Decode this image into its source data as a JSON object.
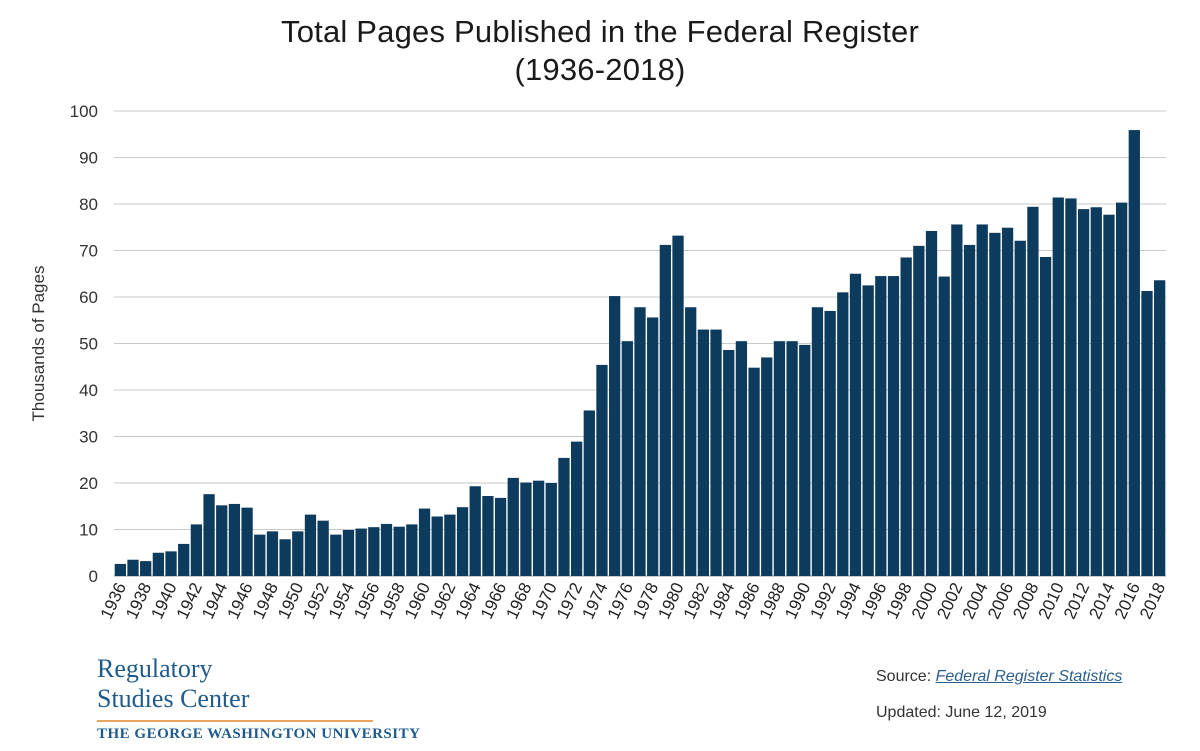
{
  "chart_data": {
    "type": "bar",
    "title_line1": "Total Pages Published in the Federal Register",
    "title_line2": "(1936-2018)",
    "xlabel": "",
    "ylabel": "Thousands of Pages",
    "ylim": [
      0,
      100
    ],
    "yticks": [
      0,
      10,
      20,
      30,
      40,
      50,
      60,
      70,
      80,
      90,
      100
    ],
    "grid": true,
    "bar_color": "#0d3b5e",
    "categories": [
      1936,
      1937,
      1938,
      1939,
      1940,
      1941,
      1942,
      1943,
      1944,
      1945,
      1946,
      1947,
      1948,
      1949,
      1950,
      1951,
      1952,
      1953,
      1954,
      1955,
      1956,
      1957,
      1958,
      1959,
      1960,
      1961,
      1962,
      1963,
      1964,
      1965,
      1966,
      1967,
      1968,
      1969,
      1970,
      1971,
      1972,
      1973,
      1974,
      1975,
      1976,
      1977,
      1978,
      1979,
      1980,
      1981,
      1982,
      1983,
      1984,
      1985,
      1986,
      1987,
      1988,
      1989,
      1990,
      1991,
      1992,
      1993,
      1994,
      1995,
      1996,
      1997,
      1998,
      1999,
      2000,
      2001,
      2002,
      2003,
      2004,
      2005,
      2006,
      2007,
      2008,
      2009,
      2010,
      2011,
      2012,
      2013,
      2014,
      2015,
      2016,
      2017,
      2018
    ],
    "tick_labels": [
      "1936",
      "1938",
      "1940",
      "1942",
      "1944",
      "1946",
      "1948",
      "1950",
      "1952",
      "1954",
      "1956",
      "1958",
      "1960",
      "1962",
      "1964",
      "1966",
      "1968",
      "1970",
      "1972",
      "1974",
      "1976",
      "1978",
      "1980",
      "1982",
      "1984",
      "1986",
      "1988",
      "1990",
      "1992",
      "1994",
      "1996",
      "1998",
      "2000",
      "2002",
      "2004",
      "2006",
      "2008",
      "2010",
      "2012",
      "2014",
      "2016",
      "2018"
    ],
    "values": [
      2.6,
      3.5,
      3.2,
      5.0,
      5.3,
      6.9,
      11.1,
      17.6,
      15.2,
      15.5,
      14.7,
      8.9,
      9.6,
      7.9,
      9.6,
      13.2,
      11.9,
      8.9,
      9.9,
      10.2,
      10.5,
      11.2,
      10.6,
      11.1,
      14.5,
      12.8,
      13.2,
      14.8,
      19.3,
      17.2,
      16.8,
      21.1,
      20.1,
      20.5,
      20.0,
      25.4,
      28.9,
      35.6,
      45.4,
      60.2,
      50.5,
      57.8,
      55.6,
      71.2,
      73.2,
      57.8,
      53.0,
      53.0,
      48.6,
      50.5,
      44.8,
      47.0,
      50.5,
      50.5,
      49.7,
      57.8,
      57.0,
      61.0,
      65.0,
      62.5,
      64.5,
      64.5,
      68.5,
      71.0,
      74.2,
      64.4,
      75.6,
      71.2,
      75.6,
      73.8,
      74.9,
      72.1,
      79.4,
      68.6,
      81.4,
      81.2,
      78.9,
      79.3,
      77.7,
      80.3,
      95.9,
      61.3,
      63.6
    ]
  },
  "logo": {
    "line1": "Regulatory",
    "line2": "Studies Center",
    "line3": "THE GEORGE WASHINGTON UNIVERSITY",
    "brand_color": "#1f5a8c",
    "rule_color": "#e8a45a"
  },
  "source": {
    "prefix": "Source:",
    "link_text": "Federal Register Statistics"
  },
  "updated": "Updated: June 12, 2019"
}
